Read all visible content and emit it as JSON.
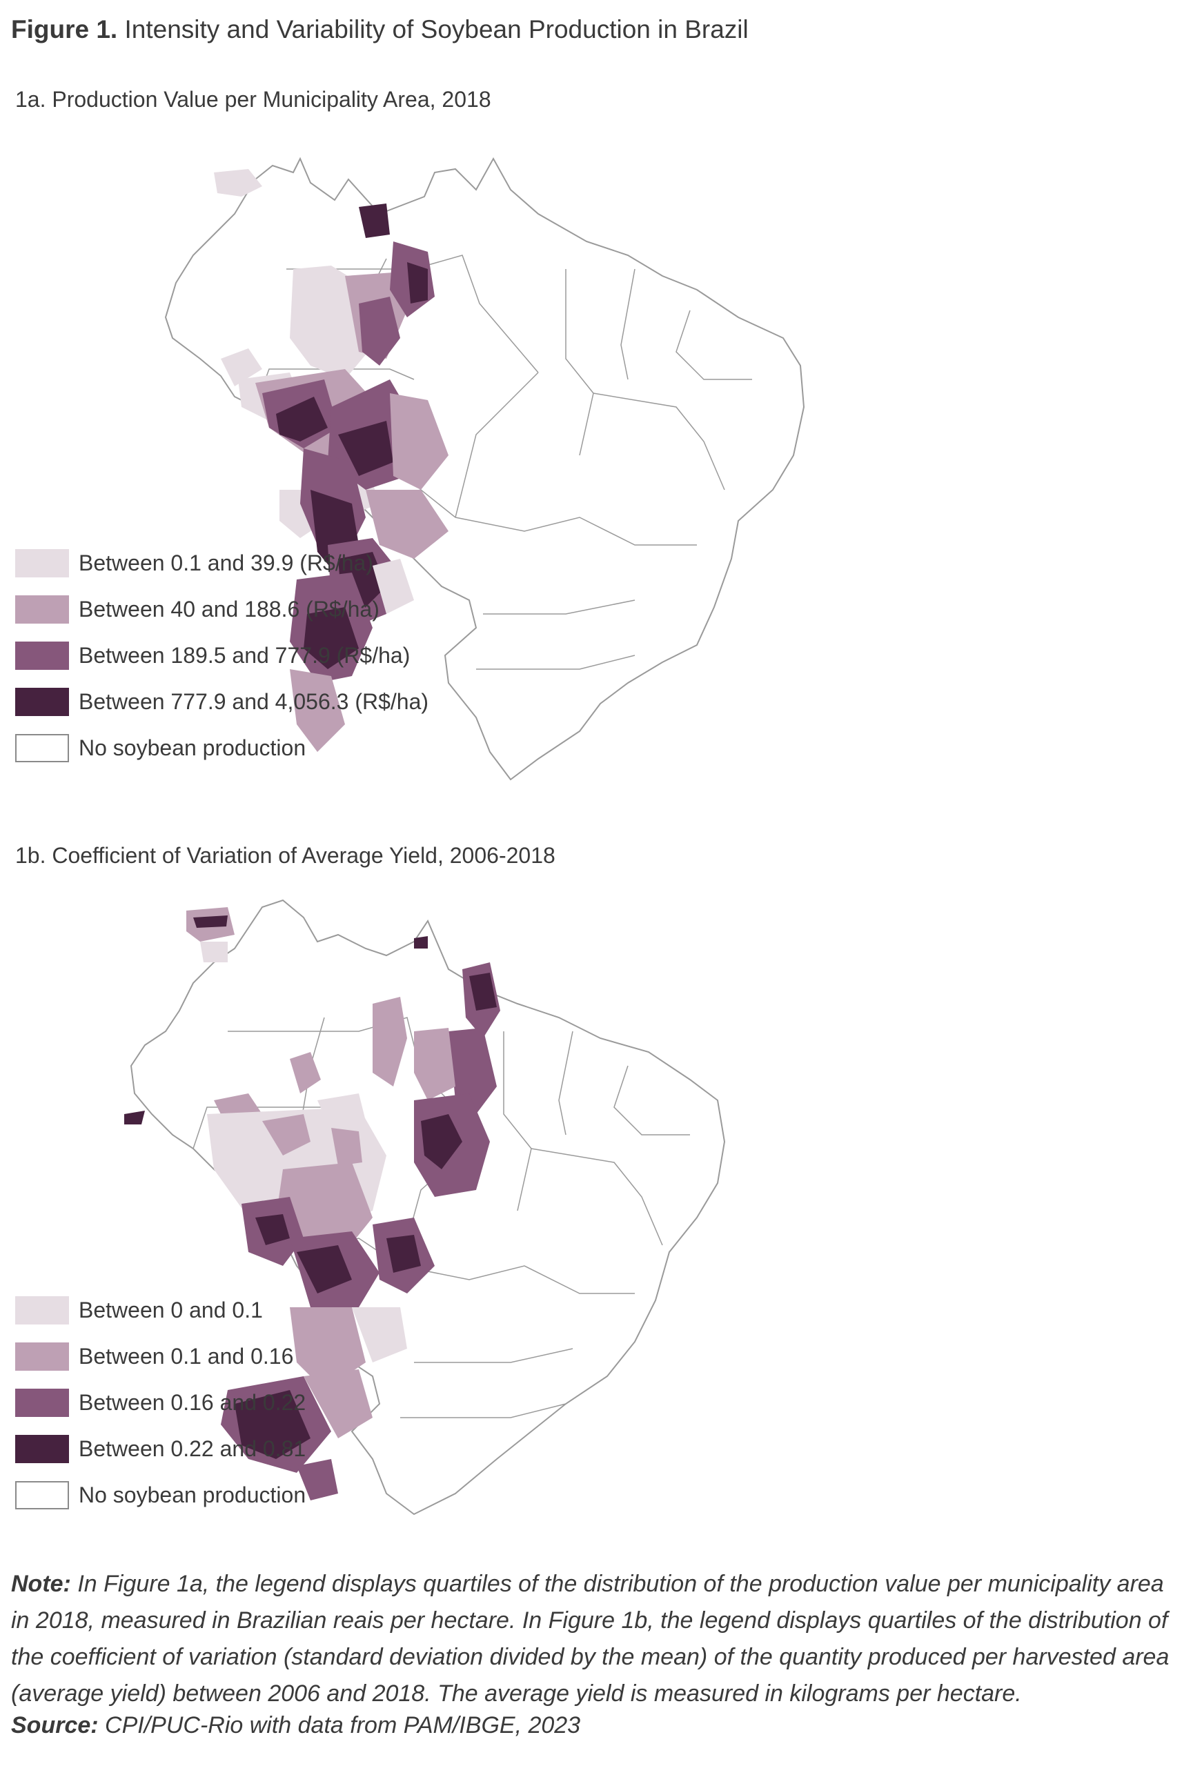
{
  "figure": {
    "label": "Figure 1.",
    "title": "Intensity and Variability of Soybean Production in Brazil"
  },
  "panel_a": {
    "title": "1a. Production Value per Municipality Area, 2018",
    "legend": [
      {
        "label": "Between 0.1 and 39.9 (R$/ha)",
        "color": "#e6dde3"
      },
      {
        "label": "Between 40 and 188.6 (R$/ha)",
        "color": "#bea0b4"
      },
      {
        "label": "Between 189.5 and 777.9 (R$/ha)",
        "color": "#86577b"
      },
      {
        "label": "Between 777.9 and 4,056.3 (R$/ha)",
        "color": "#46223f"
      },
      {
        "label": "No soybean production",
        "color": "#ffffff"
      }
    ]
  },
  "panel_b": {
    "title": "1b. Coefficient of Variation of Average Yield, 2006-2018",
    "legend": [
      {
        "label": "Between 0 and 0.1",
        "color": "#e6dde3"
      },
      {
        "label": "Between 0.1 and 0.16",
        "color": "#bea0b4"
      },
      {
        "label": "Between 0.16 and 0.22",
        "color": "#86577b"
      },
      {
        "label": "Between 0.22 and 0.81",
        "color": "#46223f"
      },
      {
        "label": "No soybean production",
        "color": "#ffffff"
      }
    ]
  },
  "note": {
    "label": "Note:",
    "text": "In Figure 1a, the legend displays quartiles of the distribution of the production value per municipality area in 2018, measured in Brazilian reais per hectare. In Figure 1b, the legend displays quartiles of the distribution of the coefficient of variation (standard deviation divided by the mean) of the quantity produced per harvested area (average yield) between 2006 and 2018. The average yield is measured in kilograms per hectare."
  },
  "source": {
    "label": "Source:",
    "text": "CPI/PUC-Rio with data from PAM/IBGE, 2023"
  }
}
